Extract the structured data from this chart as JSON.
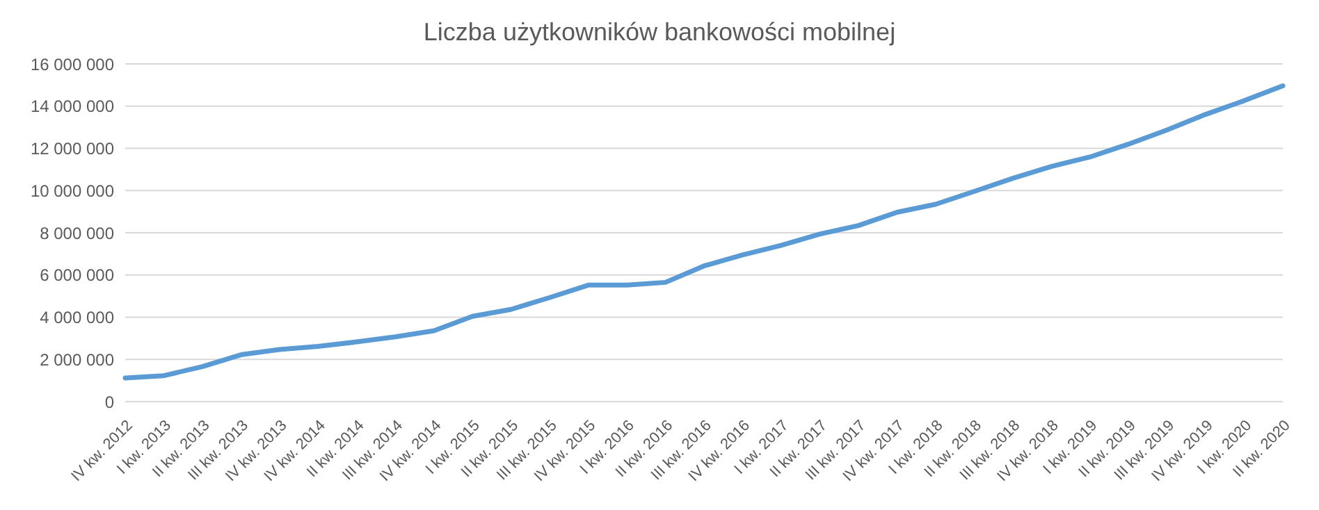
{
  "chart_data": {
    "type": "line",
    "title": "Liczba użytkowników bankowości mobilnej",
    "categories": [
      "IV kw. 2012",
      "I kw. 2013",
      "II kw. 2013",
      "III kw. 2013",
      "IV kw. 2013",
      "IV kw. 2014",
      "II kw. 2014",
      "III kw. 2014",
      "IV kw. 2014",
      "I kw. 2015",
      "II kw. 2015",
      "III kw. 2015",
      "IV kw. 2015",
      "I kw. 2016",
      "II kw. 2016",
      "III kw. 2016",
      "IV kw. 2016",
      "I kw. 2017",
      "II kw. 2017",
      "III kw. 2017",
      "IV kw. 2017",
      "I kw. 2018",
      "II kw. 2018",
      "III kw. 2018",
      "IV kw. 2018",
      "I kw. 2019",
      "II kw. 2019",
      "III kw. 2019",
      "IV kw. 2019",
      "I kw. 2020",
      "II kw. 2020"
    ],
    "series": [
      {
        "color": "#5b9bd5",
        "values": [
          1120000,
          1230000,
          1660000,
          2220000,
          2470000,
          2620000,
          2830000,
          3070000,
          3360000,
          4040000,
          4370000,
          4930000,
          5520000,
          5520000,
          5650000,
          6430000,
          6950000,
          7400000,
          7940000,
          8340000,
          8970000,
          9350000,
          9960000,
          10580000,
          11140000,
          11590000,
          12200000,
          12870000,
          13610000,
          14260000,
          14960000
        ]
      }
    ],
    "ylim": [
      0,
      16000000
    ],
    "yticks": [
      0,
      2000000,
      4000000,
      6000000,
      8000000,
      10000000,
      12000000,
      14000000,
      16000000
    ],
    "grid": "y",
    "legend": false,
    "marker": "none",
    "line_style": "solid"
  }
}
